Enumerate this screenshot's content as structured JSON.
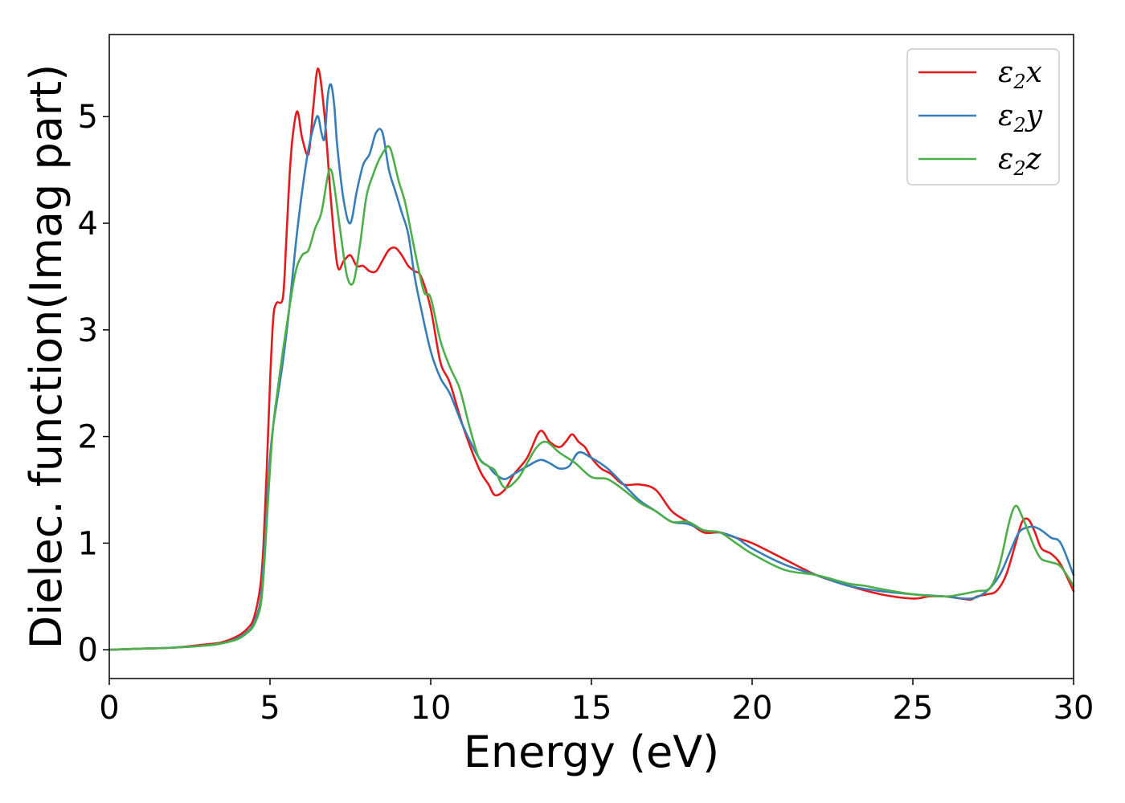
{
  "chart_data": {
    "type": "line",
    "title": "",
    "xlabel": "Energy (eV)",
    "ylabel": "Dielec. function(Imag part)",
    "xlim": [
      0,
      30
    ],
    "ylim": [
      -0.27,
      5.77
    ],
    "xticks": [
      0,
      5,
      10,
      15,
      20,
      25,
      30
    ],
    "yticks": [
      0,
      1,
      2,
      3,
      4,
      5
    ],
    "grid": false,
    "legend_position": "top-right",
    "series": [
      {
        "name": "ε2x",
        "legend_base": "ε",
        "legend_sub": "2",
        "legend_tail": "x",
        "color": "#e41a1c",
        "x": [
          0,
          1,
          2,
          3,
          3.5,
          4,
          4.3,
          4.5,
          4.7,
          4.8,
          4.9,
          5.0,
          5.1,
          5.2,
          5.4,
          5.5,
          5.6,
          5.7,
          5.85,
          6.0,
          6.2,
          6.35,
          6.5,
          6.7,
          6.9,
          7.1,
          7.3,
          7.5,
          7.7,
          7.9,
          8.1,
          8.3,
          8.5,
          8.7,
          8.9,
          9.1,
          9.3,
          9.5,
          9.7,
          10.0,
          10.3,
          10.6,
          11.0,
          11.5,
          11.8,
          12.0,
          12.3,
          12.6,
          13.0,
          13.4,
          13.7,
          14.0,
          14.2,
          14.4,
          14.6,
          14.8,
          15.0,
          15.3,
          15.6,
          16.0,
          16.5,
          17.0,
          17.5,
          18.0,
          18.5,
          19.0,
          19.5,
          20.0,
          21.0,
          22.0,
          23.0,
          24.0,
          25.0,
          25.5,
          26.0,
          26.5,
          26.8,
          27.0,
          27.3,
          27.6,
          27.9,
          28.2,
          28.4,
          28.6,
          28.8,
          29.0,
          29.3,
          29.6,
          30.0
        ],
        "y": [
          0.0,
          0.01,
          0.02,
          0.05,
          0.07,
          0.13,
          0.2,
          0.3,
          0.6,
          1.0,
          1.7,
          2.5,
          3.1,
          3.25,
          3.3,
          3.8,
          4.4,
          4.8,
          5.05,
          4.8,
          4.65,
          5.1,
          5.45,
          5.0,
          4.2,
          3.6,
          3.65,
          3.7,
          3.6,
          3.6,
          3.55,
          3.55,
          3.65,
          3.75,
          3.77,
          3.7,
          3.6,
          3.55,
          3.5,
          3.2,
          2.7,
          2.5,
          2.1,
          1.7,
          1.55,
          1.45,
          1.5,
          1.65,
          1.8,
          2.05,
          1.95,
          1.9,
          1.95,
          2.02,
          1.95,
          1.9,
          1.8,
          1.7,
          1.65,
          1.55,
          1.55,
          1.5,
          1.3,
          1.2,
          1.1,
          1.1,
          1.05,
          1.0,
          0.85,
          0.7,
          0.6,
          0.52,
          0.48,
          0.5,
          0.5,
          0.48,
          0.47,
          0.5,
          0.52,
          0.55,
          0.7,
          1.0,
          1.2,
          1.22,
          1.1,
          0.95,
          0.9,
          0.8,
          0.55
        ]
      },
      {
        "name": "ε2y",
        "legend_base": "ε",
        "legend_sub": "2",
        "legend_tail": "y",
        "color": "#377eb8",
        "x": [
          0,
          1,
          2,
          3,
          3.5,
          4,
          4.3,
          4.5,
          4.7,
          4.8,
          4.9,
          5.0,
          5.1,
          5.2,
          5.4,
          5.6,
          5.8,
          6.0,
          6.2,
          6.4,
          6.5,
          6.6,
          6.7,
          6.8,
          6.9,
          7.0,
          7.1,
          7.3,
          7.5,
          7.7,
          7.9,
          8.1,
          8.3,
          8.5,
          8.7,
          8.9,
          9.1,
          9.3,
          9.5,
          9.7,
          10.0,
          10.3,
          10.6,
          11.0,
          11.5,
          11.8,
          12.0,
          12.3,
          12.6,
          13.0,
          13.4,
          13.7,
          14.0,
          14.3,
          14.6,
          15.0,
          15.5,
          16.0,
          16.5,
          17.0,
          17.5,
          18.0,
          18.5,
          19.0,
          19.5,
          20.0,
          21.0,
          22.0,
          23.0,
          24.0,
          25.0,
          26.0,
          26.8,
          27.3,
          27.7,
          28.0,
          28.3,
          28.6,
          28.8,
          29.0,
          29.3,
          29.6,
          30.0
        ],
        "y": [
          0.0,
          0.01,
          0.02,
          0.04,
          0.06,
          0.11,
          0.17,
          0.25,
          0.45,
          0.8,
          1.3,
          1.8,
          2.1,
          2.3,
          2.7,
          3.2,
          3.8,
          4.3,
          4.7,
          4.95,
          5.0,
          4.85,
          4.8,
          5.2,
          5.3,
          5.1,
          4.7,
          4.2,
          4.0,
          4.3,
          4.55,
          4.65,
          4.85,
          4.85,
          4.5,
          4.3,
          4.1,
          3.9,
          3.5,
          3.2,
          2.8,
          2.55,
          2.4,
          2.1,
          1.8,
          1.72,
          1.65,
          1.6,
          1.65,
          1.72,
          1.78,
          1.75,
          1.7,
          1.72,
          1.85,
          1.8,
          1.7,
          1.55,
          1.4,
          1.3,
          1.2,
          1.18,
          1.12,
          1.1,
          1.05,
          0.95,
          0.8,
          0.7,
          0.6,
          0.55,
          0.52,
          0.5,
          0.48,
          0.55,
          0.7,
          0.9,
          1.1,
          1.15,
          1.15,
          1.12,
          1.05,
          1.0,
          0.7
        ]
      },
      {
        "name": "ε2z",
        "legend_base": "ε",
        "legend_sub": "2",
        "legend_tail": "z",
        "color": "#4daf4a",
        "x": [
          0,
          1,
          2,
          3,
          3.5,
          4,
          4.3,
          4.5,
          4.7,
          4.8,
          4.9,
          5.0,
          5.1,
          5.2,
          5.4,
          5.6,
          5.8,
          6.0,
          6.2,
          6.4,
          6.6,
          6.8,
          6.9,
          7.0,
          7.2,
          7.4,
          7.6,
          7.8,
          8.0,
          8.2,
          8.4,
          8.6,
          8.7,
          8.8,
          9.0,
          9.2,
          9.4,
          9.6,
          9.8,
          10.0,
          10.3,
          10.6,
          10.9,
          11.2,
          11.5,
          11.8,
          12.0,
          12.3,
          12.7,
          13.0,
          13.3,
          13.6,
          14.0,
          14.5,
          15.0,
          15.5,
          16.0,
          16.5,
          17.0,
          17.5,
          18.0,
          18.5,
          19.0,
          19.5,
          20.0,
          21.0,
          22.0,
          23.0,
          23.5,
          24.0,
          25.0,
          26.0,
          26.5,
          27.0,
          27.4,
          27.7,
          28.0,
          28.2,
          28.4,
          28.6,
          28.8,
          29.0,
          29.3,
          29.6,
          30.0
        ],
        "y": [
          0.0,
          0.01,
          0.02,
          0.04,
          0.06,
          0.1,
          0.16,
          0.23,
          0.4,
          0.7,
          1.2,
          1.7,
          2.1,
          2.35,
          2.8,
          3.2,
          3.55,
          3.7,
          3.75,
          3.95,
          4.1,
          4.45,
          4.5,
          4.35,
          3.9,
          3.5,
          3.45,
          3.8,
          4.25,
          4.45,
          4.6,
          4.7,
          4.72,
          4.65,
          4.4,
          4.2,
          3.9,
          3.6,
          3.35,
          3.3,
          2.9,
          2.65,
          2.45,
          2.1,
          1.8,
          1.72,
          1.68,
          1.52,
          1.6,
          1.75,
          1.9,
          1.95,
          1.85,
          1.75,
          1.62,
          1.6,
          1.5,
          1.38,
          1.3,
          1.2,
          1.2,
          1.12,
          1.1,
          1.0,
          0.9,
          0.75,
          0.7,
          0.62,
          0.6,
          0.57,
          0.52,
          0.5,
          0.52,
          0.55,
          0.58,
          0.8,
          1.2,
          1.35,
          1.25,
          1.1,
          0.95,
          0.85,
          0.82,
          0.78,
          0.6
        ]
      }
    ]
  }
}
